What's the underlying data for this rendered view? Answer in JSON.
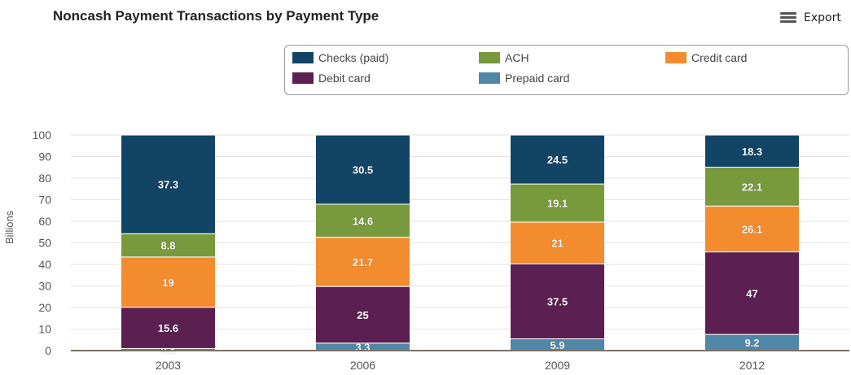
{
  "title": "Noncash Payment Transactions by Payment Type",
  "toolbar": {
    "export_label": "Export",
    "export_icon": "menu-icon"
  },
  "chart_data": {
    "type": "bar",
    "stacked": true,
    "stack_mode": "percent",
    "title": "Noncash Payment Transactions by Payment Type",
    "xlabel": "",
    "ylabel": "Billions",
    "categories": [
      "2003",
      "2006",
      "2009",
      "2012"
    ],
    "ylim": [
      0,
      100
    ],
    "yticks": [
      0,
      10,
      20,
      30,
      40,
      50,
      60,
      70,
      80,
      90,
      100
    ],
    "grid": true,
    "legend_position": "top-right",
    "series": [
      {
        "name": "Prepaid card",
        "color": "#5087a6",
        "values": [
          0.8,
          3.3,
          5.9,
          9.2
        ]
      },
      {
        "name": "Debit card",
        "color": "#5b1f52",
        "values": [
          15.6,
          25,
          37.5,
          47
        ]
      },
      {
        "name": "Credit card",
        "color": "#f28c2f",
        "values": [
          19,
          21.7,
          21,
          26.1
        ]
      },
      {
        "name": "ACH",
        "color": "#789a3d",
        "values": [
          8.8,
          14.6,
          19.1,
          22.1
        ]
      },
      {
        "name": "Checks (paid)",
        "color": "#124466",
        "values": [
          37.3,
          30.5,
          24.5,
          18.3
        ]
      }
    ],
    "legend_order": [
      "Checks (paid)",
      "ACH",
      "Credit card",
      "Debit card",
      "Prepaid card"
    ]
  }
}
